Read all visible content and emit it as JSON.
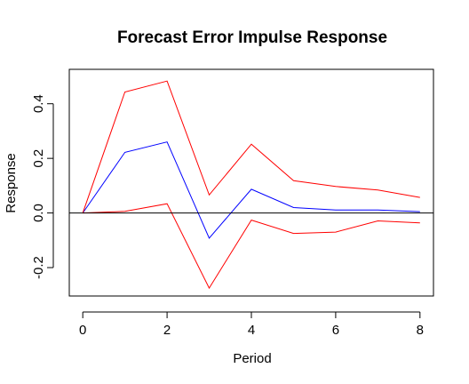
{
  "chart_data": {
    "type": "line",
    "title": "Forecast Error Impulse Response",
    "xlabel": "Period",
    "ylabel": "Response",
    "x": [
      0,
      1,
      2,
      3,
      4,
      5,
      6,
      7,
      8
    ],
    "xticks": [
      0,
      2,
      4,
      6,
      8
    ],
    "yticks": [
      -0.2,
      0.0,
      0.2,
      0.4
    ],
    "ytick_labels": [
      "-0.2",
      "0.0",
      "0.2",
      "0.4"
    ],
    "xlim": [
      -0.32,
      8.32
    ],
    "ylim": [
      -0.304,
      0.526
    ],
    "zero_line": 0,
    "series": [
      {
        "role": "response",
        "color": "#0000ff",
        "values": [
          0.0,
          0.222,
          0.26,
          -0.092,
          0.087,
          0.02,
          0.011,
          0.011,
          0.005
        ]
      },
      {
        "role": "upper-band",
        "color": "#ff0000",
        "values": [
          0.0,
          0.443,
          0.483,
          0.066,
          0.252,
          0.118,
          0.097,
          0.084,
          0.057
        ]
      },
      {
        "role": "lower-band",
        "color": "#ff0000",
        "values": [
          0.0,
          0.006,
          0.034,
          -0.275,
          -0.026,
          -0.075,
          -0.07,
          -0.029,
          -0.036
        ]
      }
    ]
  }
}
